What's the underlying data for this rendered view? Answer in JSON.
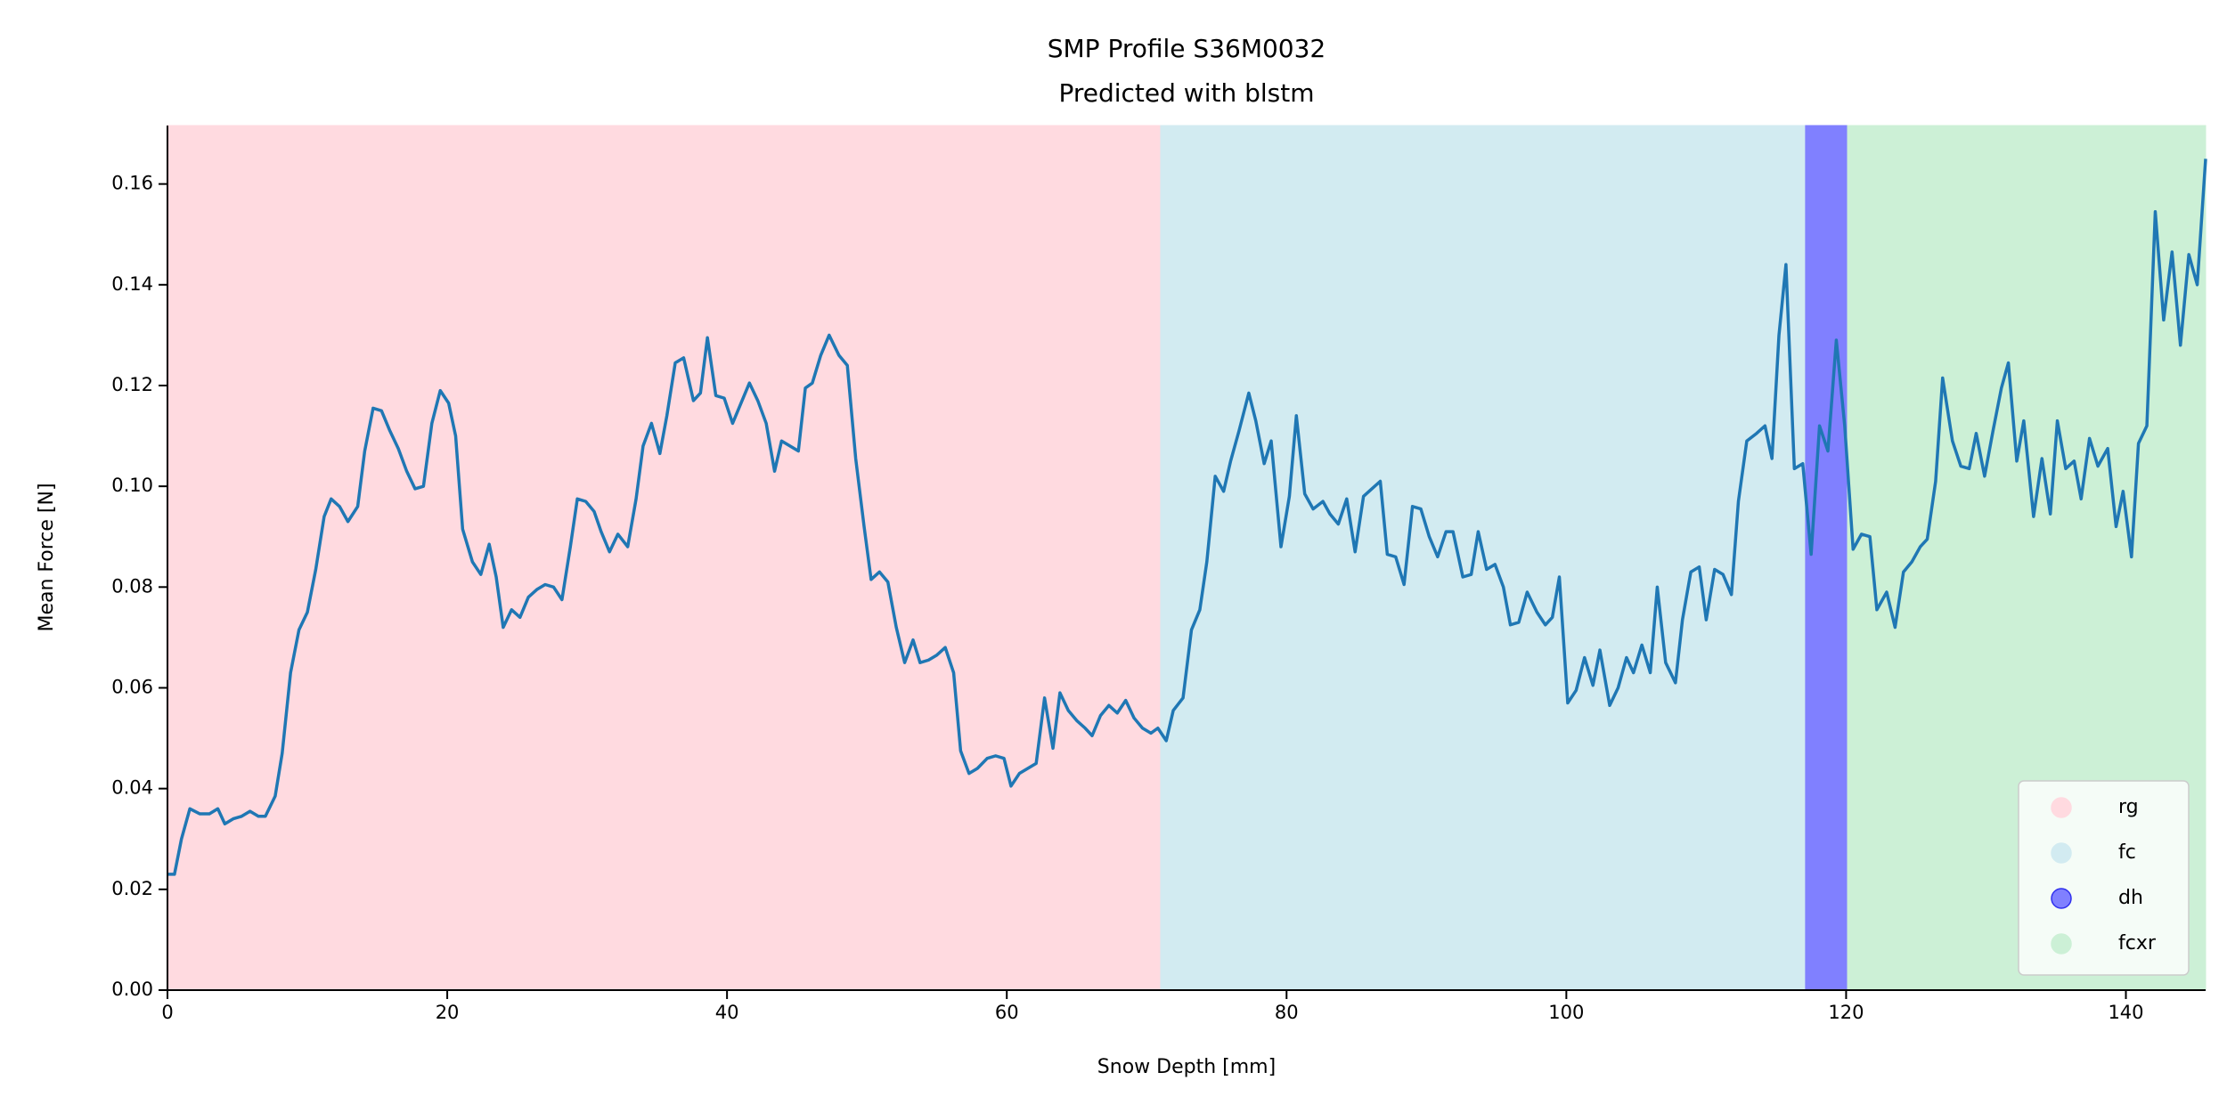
{
  "chart_data": {
    "type": "line",
    "title": "SMP Profile S36M0032",
    "subtitle": "Predicted with blstm",
    "x_label": "Snow Depth [mm]",
    "y_label": "Mean Force [N]",
    "xlim": [
      0,
      145.7
    ],
    "ylim": [
      0,
      0.1716
    ],
    "xticks": [
      0,
      20,
      40,
      60,
      80,
      100,
      120,
      140
    ],
    "yticks": [
      {
        "value": 0,
        "label": "0.00"
      },
      0.02,
      0.04,
      0.06,
      0.08,
      {
        "value": 0.1,
        "label": "0.10"
      },
      0.12,
      0.14,
      0.16
    ],
    "legend": "lower right",
    "regions": [
      {
        "label": "rg",
        "start": 0,
        "end": 71.0,
        "color": "#ffdae0"
      },
      {
        "label": "fc",
        "start": 71.0,
        "end": 117.1,
        "color": "#d2ebf1"
      },
      {
        "label": "dh",
        "start": 117.1,
        "end": 120.1,
        "color": "#8080ff"
      },
      {
        "label": "fcxr",
        "start": 120.1,
        "end": 145.7,
        "color": "#ccf0d6"
      }
    ],
    "series": [
      {
        "color": "#1f77b4",
        "x": [
          0,
          0.5,
          1.0,
          1.6,
          2.3,
          3.0,
          3.6,
          4.1,
          4.7,
          5.3,
          5.9,
          6.5,
          7.0,
          7.7,
          8.2,
          8.8,
          9.4,
          10.0,
          10.6,
          11.2,
          11.7,
          12.3,
          12.9,
          13.6,
          14.1,
          14.7,
          15.3,
          15.9,
          16.5,
          17.1,
          17.7,
          18.3,
          18.9,
          19.5,
          20.1,
          20.6,
          21.1,
          21.8,
          22.4,
          23.0,
          23.5,
          24.0,
          24.6,
          25.2,
          25.8,
          26.4,
          27.0,
          27.6,
          28.2,
          28.8,
          29.3,
          29.9,
          30.5,
          31.0,
          31.6,
          32.2,
          32.9,
          33.5,
          34.0,
          34.6,
          35.2,
          35.7,
          36.3,
          36.9,
          37.6,
          38.1,
          38.6,
          39.2,
          39.8,
          40.4,
          41.0,
          41.6,
          42.2,
          42.8,
          43.4,
          43.9,
          44.5,
          45.1,
          45.6,
          46.1,
          46.7,
          47.3,
          48.0,
          48.6,
          49.2,
          49.8,
          50.3,
          50.9,
          51.5,
          52.1,
          52.7,
          53.3,
          53.8,
          54.4,
          55.0,
          55.6,
          56.2,
          56.7,
          57.3,
          57.9,
          58.6,
          59.2,
          59.8,
          60.3,
          60.9,
          61.5,
          62.1,
          62.7,
          63.3,
          63.8,
          64.4,
          65.0,
          65.6,
          66.1,
          66.7,
          67.3,
          67.9,
          68.5,
          69.1,
          69.7,
          70.3,
          70.8,
          71.4,
          71.9,
          72.6,
          73.2,
          73.8,
          74.3,
          74.9,
          75.5,
          76.0,
          76.6,
          77.3,
          77.8,
          78.4,
          78.9,
          79.6,
          80.2,
          80.7,
          81.3,
          81.9,
          82.6,
          83.1,
          83.7,
          84.3,
          84.9,
          85.5,
          86.1,
          86.7,
          87.2,
          87.8,
          88.4,
          89.0,
          89.6,
          90.2,
          90.8,
          91.4,
          91.9,
          92.6,
          93.2,
          93.7,
          94.3,
          94.9,
          95.5,
          96.0,
          96.6,
          97.2,
          97.9,
          98.5,
          99.0,
          99.5,
          100.1,
          100.7,
          101.3,
          101.9,
          102.4,
          103.1,
          103.7,
          104.3,
          104.8,
          105.4,
          106.0,
          106.5,
          107.1,
          107.8,
          108.3,
          108.9,
          109.5,
          110.0,
          110.6,
          111.2,
          111.8,
          112.3,
          112.9,
          113.6,
          114.2,
          114.7,
          115.2,
          115.7,
          116.3,
          116.9,
          117.5,
          118.1,
          118.7,
          119.3,
          119.9,
          120.5,
          121.1,
          121.7,
          122.2,
          122.9,
          123.5,
          124.1,
          124.7,
          125.3,
          125.8,
          126.4,
          126.9,
          127.6,
          128.2,
          128.8,
          129.3,
          129.9,
          130.5,
          131.1,
          131.6,
          132.2,
          132.7,
          133.4,
          134.0,
          134.6,
          135.1,
          135.7,
          136.3,
          136.8,
          137.4,
          138.0,
          138.7,
          139.3,
          139.8,
          140.4,
          140.9,
          141.5,
          142.1,
          142.7,
          143.3,
          143.9,
          144.5,
          145.1,
          145.7
        ],
        "values": [
          0.023,
          0.023,
          0.03,
          0.036,
          0.035,
          0.035,
          0.036,
          0.033,
          0.034,
          0.0345,
          0.0355,
          0.0345,
          0.0345,
          0.0385,
          0.047,
          0.063,
          0.0715,
          0.075,
          0.0835,
          0.094,
          0.0975,
          0.096,
          0.093,
          0.096,
          0.107,
          0.1155,
          0.115,
          0.111,
          0.1075,
          0.103,
          0.0995,
          0.1,
          0.1125,
          0.119,
          0.1165,
          0.11,
          0.0915,
          0.085,
          0.0825,
          0.0885,
          0.082,
          0.072,
          0.0755,
          0.074,
          0.078,
          0.0795,
          0.0805,
          0.08,
          0.0775,
          0.088,
          0.0975,
          0.097,
          0.095,
          0.091,
          0.087,
          0.0905,
          0.088,
          0.0975,
          0.108,
          0.1125,
          0.1065,
          0.114,
          0.1245,
          0.1255,
          0.117,
          0.1185,
          0.1295,
          0.118,
          0.1175,
          0.1125,
          0.1165,
          0.1205,
          0.117,
          0.1125,
          0.103,
          0.109,
          0.108,
          0.107,
          0.1195,
          0.1205,
          0.126,
          0.13,
          0.126,
          0.124,
          0.1055,
          0.092,
          0.0815,
          0.083,
          0.081,
          0.072,
          0.065,
          0.0695,
          0.065,
          0.0655,
          0.0665,
          0.068,
          0.063,
          0.0475,
          0.043,
          0.044,
          0.046,
          0.0465,
          0.046,
          0.0405,
          0.043,
          0.044,
          0.045,
          0.058,
          0.048,
          0.059,
          0.0555,
          0.0535,
          0.052,
          0.0505,
          0.0545,
          0.0565,
          0.055,
          0.0575,
          0.054,
          0.052,
          0.051,
          0.052,
          0.0495,
          0.0555,
          0.058,
          0.0715,
          0.0755,
          0.085,
          0.102,
          0.099,
          0.105,
          0.111,
          0.1185,
          0.113,
          0.1045,
          0.109,
          0.088,
          0.098,
          0.114,
          0.0985,
          0.0955,
          0.097,
          0.0945,
          0.0925,
          0.0975,
          0.087,
          0.098,
          0.0995,
          0.101,
          0.0865,
          0.086,
          0.0805,
          0.096,
          0.0955,
          0.09,
          0.086,
          0.091,
          0.091,
          0.082,
          0.0825,
          0.091,
          0.0835,
          0.0845,
          0.08,
          0.0725,
          0.073,
          0.079,
          0.075,
          0.0725,
          0.074,
          0.082,
          0.057,
          0.0595,
          0.066,
          0.0605,
          0.0675,
          0.0565,
          0.06,
          0.066,
          0.063,
          0.0685,
          0.063,
          0.08,
          0.065,
          0.061,
          0.0735,
          0.083,
          0.084,
          0.0735,
          0.0835,
          0.0825,
          0.0785,
          0.097,
          0.109,
          0.1105,
          0.112,
          0.1055,
          0.13,
          0.144,
          0.1035,
          0.1045,
          0.0865,
          0.112,
          0.107,
          0.129,
          0.112,
          0.0875,
          0.0905,
          0.09,
          0.0755,
          0.079,
          0.072,
          0.083,
          0.085,
          0.088,
          0.0895,
          0.101,
          0.1215,
          0.109,
          0.104,
          0.1035,
          0.1105,
          0.102,
          0.111,
          0.1195,
          0.1245,
          0.105,
          0.113,
          0.094,
          0.1055,
          0.0945,
          0.113,
          0.1035,
          0.105,
          0.0975,
          0.1095,
          0.104,
          0.1075,
          0.092,
          0.099,
          0.086,
          0.1085,
          0.112,
          0.1545,
          0.133,
          0.1465,
          0.128,
          0.146,
          0.14,
          0.165
        ]
      }
    ]
  }
}
